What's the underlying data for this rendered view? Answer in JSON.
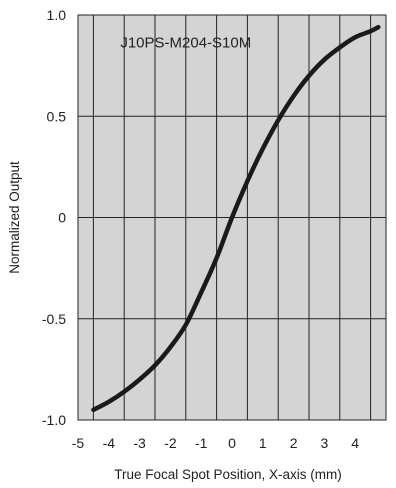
{
  "chart_data": {
    "type": "line",
    "title": "",
    "annotation": "J10PS-M204-S10M",
    "xlabel": "True Focal Spot Position, X-axis (mm)",
    "ylabel": "Normalized Output",
    "xlim": [
      -5.0,
      5.0
    ],
    "ylim": [
      -1.0,
      1.0
    ],
    "x_ticks": [
      -5,
      -4,
      -3,
      -2,
      -1,
      0,
      1,
      2,
      3,
      4
    ],
    "x_tick_labels": [
      "-5",
      "-4",
      "-3",
      "-2",
      "-1",
      "0",
      "1",
      "2",
      "3",
      "4"
    ],
    "y_ticks": [
      1.0,
      0.5,
      0,
      -0.5,
      -1.0
    ],
    "y_tick_labels": [
      "1.0",
      "0.5",
      "0",
      "-0.5",
      "-1.0"
    ],
    "vertical_gridlines": [
      -4.5,
      -3.5,
      -2.5,
      -1.5,
      -0.5,
      0.5,
      1.5,
      2.5,
      3.5,
      4.5
    ],
    "horizontal_gridlines": [
      0.5,
      0,
      -0.5
    ],
    "grid": true,
    "plot_background": "#d4d4d4",
    "line_color": "#1a1a1a",
    "series": [
      {
        "x": [
          -4.5,
          -4.0,
          -3.5,
          -3.0,
          -2.5,
          -2.0,
          -1.5,
          -1.0,
          -0.5,
          0.0,
          0.5,
          1.0,
          1.5,
          2.0,
          2.5,
          3.0,
          3.5,
          4.0,
          4.5,
          4.75
        ],
        "y": [
          -0.95,
          -0.91,
          -0.86,
          -0.8,
          -0.73,
          -0.64,
          -0.53,
          -0.37,
          -0.2,
          0.0,
          0.18,
          0.34,
          0.48,
          0.6,
          0.7,
          0.78,
          0.84,
          0.89,
          0.92,
          0.94
        ]
      }
    ]
  }
}
